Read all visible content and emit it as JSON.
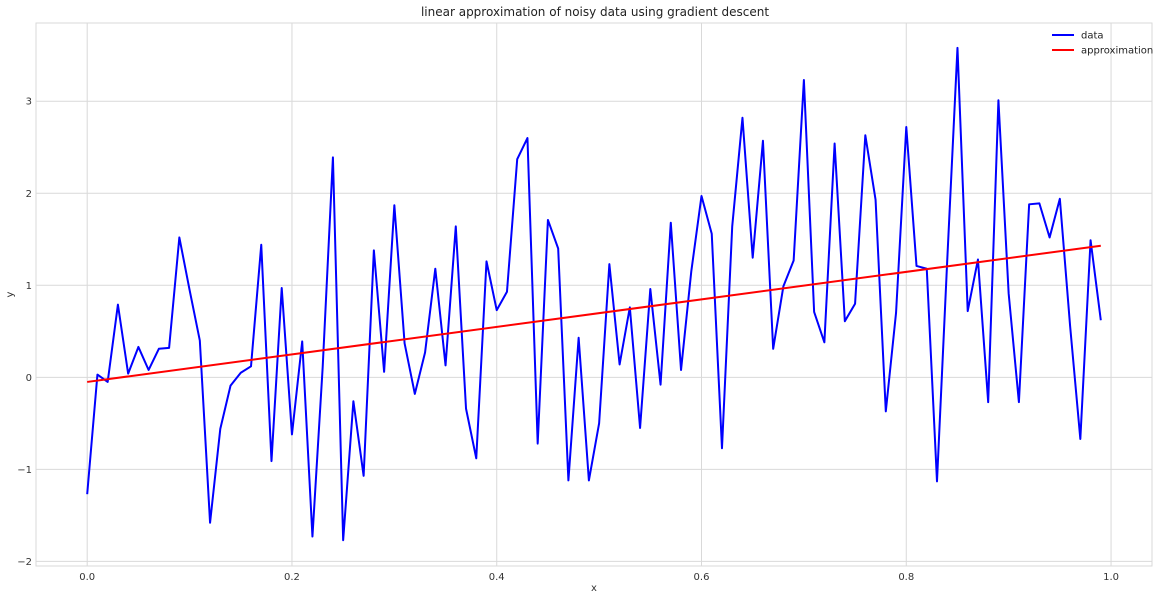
{
  "chart_data": {
    "type": "line",
    "title": "linear approximation of noisy data using gradient descent",
    "xlabel": "x",
    "ylabel": "y",
    "xlim": [
      -0.05,
      1.04
    ],
    "ylim": [
      -2.05,
      3.85
    ],
    "xticks": [
      0.0,
      0.2,
      0.4,
      0.6,
      0.8,
      1.0
    ],
    "xtick_labels": [
      "0.0",
      "0.2",
      "0.4",
      "0.6",
      "0.8",
      "1.0"
    ],
    "yticks": [
      -2,
      -1,
      0,
      1,
      2,
      3
    ],
    "ytick_labels": [
      "−2",
      "−1",
      "0",
      "1",
      "2",
      "3"
    ],
    "grid": true,
    "legend_position": "top-right",
    "series": [
      {
        "name": "data",
        "color": "#0000ff",
        "x": [
          0.0,
          0.01,
          0.02,
          0.03,
          0.04,
          0.05,
          0.06,
          0.07,
          0.08,
          0.09,
          0.1,
          0.11,
          0.12,
          0.13,
          0.14,
          0.15,
          0.16,
          0.17,
          0.18,
          0.19,
          0.2,
          0.21,
          0.22,
          0.23,
          0.24,
          0.25,
          0.26,
          0.27,
          0.28,
          0.29,
          0.3,
          0.31,
          0.32,
          0.33,
          0.34,
          0.35,
          0.36,
          0.37,
          0.38,
          0.39,
          0.4,
          0.41,
          0.42,
          0.43,
          0.44,
          0.45,
          0.46,
          0.47,
          0.48,
          0.49,
          0.5,
          0.51,
          0.52,
          0.53,
          0.54,
          0.55,
          0.56,
          0.57,
          0.58,
          0.59,
          0.6,
          0.61,
          0.62,
          0.63,
          0.64,
          0.65,
          0.66,
          0.67,
          0.68,
          0.69,
          0.7,
          0.71,
          0.72,
          0.73,
          0.74,
          0.75,
          0.76,
          0.77,
          0.78,
          0.79,
          0.8,
          0.81,
          0.82,
          0.83,
          0.84,
          0.85,
          0.86,
          0.87,
          0.88,
          0.89,
          0.9,
          0.91,
          0.92,
          0.93,
          0.94,
          0.95,
          0.96,
          0.97,
          0.98,
          0.99
        ],
        "y": [
          -1.27,
          0.03,
          -0.05,
          0.79,
          0.04,
          0.33,
          0.08,
          0.31,
          0.32,
          1.52,
          0.95,
          0.4,
          -1.58,
          -0.56,
          -0.09,
          0.05,
          0.12,
          1.44,
          -0.91,
          0.97,
          -0.62,
          0.39,
          -1.73,
          0.11,
          2.39,
          -1.77,
          -0.26,
          -1.07,
          1.38,
          0.06,
          1.87,
          0.37,
          -0.18,
          0.27,
          1.18,
          0.13,
          1.64,
          -0.34,
          -0.88,
          1.26,
          0.73,
          0.93,
          2.37,
          2.6,
          -0.72,
          1.71,
          1.4,
          -1.12,
          0.43,
          -1.12,
          -0.5,
          1.23,
          0.14,
          0.76,
          -0.55,
          0.96,
          -0.08,
          1.68,
          0.08,
          1.15,
          1.97,
          1.56,
          -0.77,
          1.64,
          2.82,
          1.3,
          2.57,
          0.31,
          0.99,
          1.27,
          3.23,
          0.71,
          0.38,
          2.54,
          0.61,
          0.8,
          2.63,
          1.93,
          -0.37,
          0.7,
          2.72,
          1.21,
          1.18,
          -1.13,
          1.27,
          3.58,
          0.72,
          1.28,
          -0.27,
          3.01,
          0.91,
          -0.27,
          1.88,
          1.89,
          1.52,
          1.94,
          0.56,
          -0.67,
          1.49,
          0.62
        ]
      },
      {
        "name": "approximation",
        "color": "#ff0000",
        "x": [
          0.0,
          0.99
        ],
        "y": [
          -0.05,
          1.43
        ]
      }
    ]
  }
}
